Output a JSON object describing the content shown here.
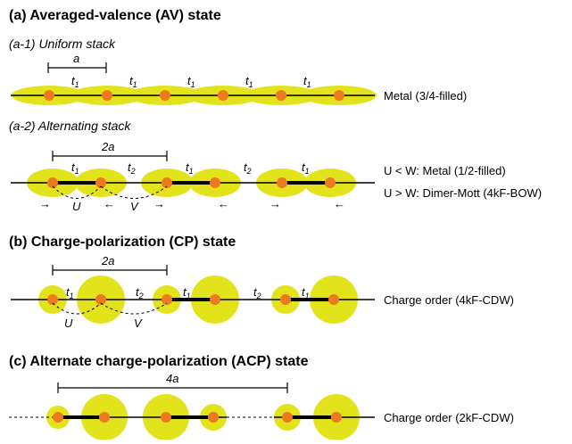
{
  "sections": {
    "a": {
      "title": "(a) Averaged-valence (AV) state",
      "a1": {
        "subtitle": "(a-1) Uniform stack",
        "length_symbol": "a",
        "hop_symbol": "t",
        "hop_index": "1",
        "result": "Metal (3/4-filled)"
      },
      "a2": {
        "subtitle": "(a-2) Alternating stack",
        "length_symbol": "2a",
        "hop_symbol": "t",
        "hop_index_1": "1",
        "hop_index_2": "2",
        "U": "U",
        "V": "V",
        "result_1": "U < W: Metal (1/2-filled)",
        "result_2": "U > W: Dimer-Mott (4kF-BOW)"
      }
    },
    "b": {
      "title": "(b) Charge-polarization (CP) state",
      "length_symbol": "2a",
      "hop_symbol": "t",
      "hop_index_1": "1",
      "hop_index_2": "2",
      "U": "U",
      "V": "V",
      "result": "Charge order (4kF-CDW)"
    },
    "c": {
      "title": "(c) Alternate charge-polarization (ACP) state",
      "length_symbol": "4a",
      "result": "Charge order (2kF-CDW)"
    }
  },
  "colors": {
    "orbital": "#e3e31c",
    "site": "#ec7a1e",
    "line": "#000000"
  }
}
